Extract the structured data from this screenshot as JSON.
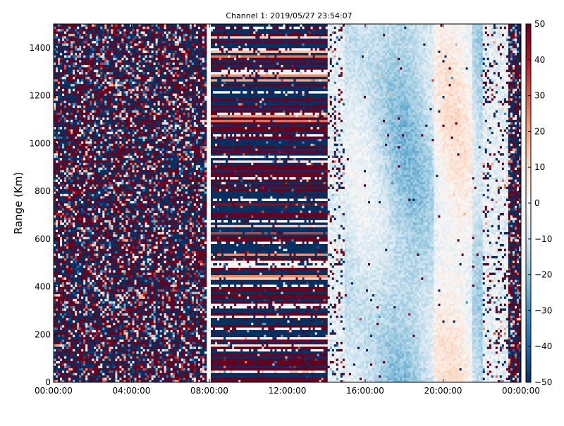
{
  "chart_data": {
    "type": "heatmap",
    "title": "Channel 1: 2019/05/27 23:54:07",
    "xlabel": "",
    "ylabel": "Range (Km)",
    "x_ticks": [
      "00:00:00",
      "04:00:00",
      "08:00:00",
      "12:00:00",
      "16:00:00",
      "20:00:00",
      "00:00:00"
    ],
    "x_range_hours": [
      0,
      24
    ],
    "y_ticks": [
      0,
      200,
      400,
      600,
      800,
      1000,
      1200,
      1400
    ],
    "ylim": [
      0,
      1500
    ],
    "colorbar": {
      "range": [
        -50,
        50
      ],
      "ticks": [
        -50,
        -40,
        -30,
        -20,
        -10,
        0,
        10,
        20,
        30,
        40,
        50
      ],
      "colormap": "RdBu_r",
      "colors": {
        "min": "#053061",
        "mid": "#f7f7f7",
        "max": "#67001f"
      }
    },
    "regions": [
      {
        "x_hours": [
          0,
          7.85
        ],
        "pattern": "random noise",
        "value_spread": 50
      },
      {
        "x_hours": [
          7.85,
          8.05
        ],
        "pattern": "data gap"
      },
      {
        "x_hours": [
          8.05,
          14.1
        ],
        "pattern": "horizontal range bands",
        "value_spread": 50
      },
      {
        "x_hours": [
          14.1,
          15.0
        ],
        "pattern": "sparse noise on light background",
        "value_spread": 10
      },
      {
        "x_hours": [
          15.0,
          22.0
        ],
        "pattern": "smooth near-zero field",
        "typical_range": [
          -20,
          10
        ]
      },
      {
        "x_hours": [
          22.0,
          23.3
        ],
        "pattern": "sparse noise on light background",
        "value_spread": 10
      },
      {
        "x_hours": [
          23.3,
          24.0
        ],
        "pattern": "random noise",
        "value_spread": 50
      }
    ]
  }
}
